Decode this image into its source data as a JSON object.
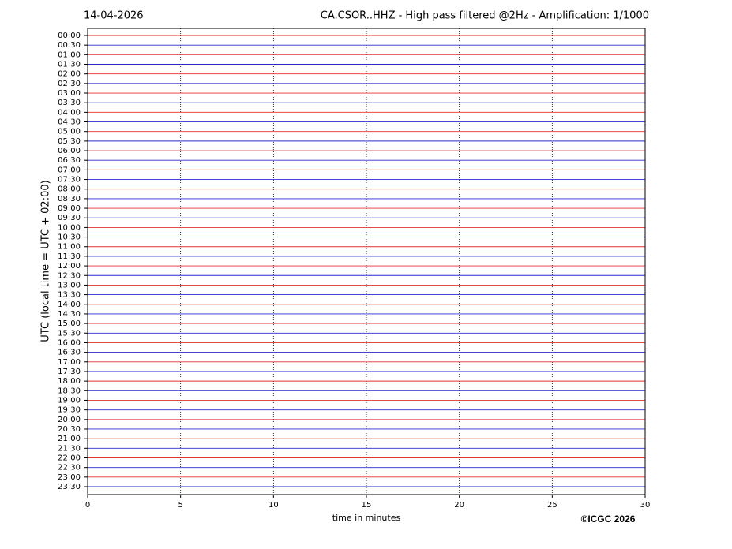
{
  "chart_data": {
    "type": "helicorder",
    "title_left": "14-04-2026",
    "title": "CA.CSOR..HHZ - High pass filtered @2Hz - Amplification: 1/1000",
    "y_label": "UTC (local time = UTC + 02:00)",
    "x_label": "time in minutes",
    "credit": "©ICGC 2026",
    "categories": [
      "00:00",
      "00:30",
      "01:00",
      "01:30",
      "02:00",
      "02:30",
      "03:00",
      "03:30",
      "04:00",
      "04:30",
      "05:00",
      "05:30",
      "06:00",
      "06:30",
      "07:00",
      "07:30",
      "08:00",
      "08:30",
      "09:00",
      "09:30",
      "10:00",
      "10:30",
      "11:00",
      "11:30",
      "12:00",
      "12:30",
      "13:00",
      "13:30",
      "14:00",
      "14:30",
      "15:00",
      "15:30",
      "16:00",
      "16:30",
      "17:00",
      "17:30",
      "18:00",
      "18:30",
      "19:00",
      "19:30",
      "20:00",
      "20:30",
      "21:00",
      "21:30",
      "22:00",
      "22:30",
      "23:00",
      "23:30"
    ],
    "trace_colors": [
      "#e03030",
      "#2a2ad0"
    ],
    "xlim": [
      0,
      30
    ],
    "xticks": [
      0,
      5,
      10,
      15,
      20,
      25,
      30
    ],
    "grid": true
  }
}
